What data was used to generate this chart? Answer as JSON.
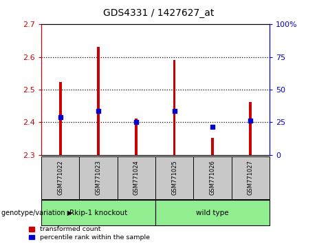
{
  "title": "GDS4331 / 1427627_at",
  "categories": [
    "GSM771022",
    "GSM771023",
    "GSM771024",
    "GSM771025",
    "GSM771026",
    "GSM771027"
  ],
  "red_values": [
    2.523,
    2.632,
    2.412,
    2.59,
    2.352,
    2.462
  ],
  "blue_values": [
    2.415,
    2.435,
    2.4,
    2.435,
    2.387,
    2.405
  ],
  "ylim_left": [
    2.3,
    2.7
  ],
  "yticks_left": [
    2.3,
    2.4,
    2.5,
    2.6,
    2.7
  ],
  "ylim_right": [
    0,
    100
  ],
  "yticks_right": [
    0,
    25,
    50,
    75,
    100
  ],
  "yticklabels_right": [
    "0",
    "25",
    "50",
    "75",
    "100%"
  ],
  "bar_bottom": 2.3,
  "group1_label": "Rkip-1 knockout",
  "group2_label": "wild type",
  "group_bg_color": "#90EE90",
  "sample_bg_color": "#C8C8C8",
  "red_color": "#CC0000",
  "blue_color": "#0000CC",
  "legend_red_label": "transformed count",
  "legend_blue_label": "percentile rank within the sample",
  "genotype_label": "genotype/variation",
  "left_axis_color": "#CC0000",
  "right_axis_color": "#0000CC",
  "grid_lines": [
    2.4,
    2.5,
    2.6
  ],
  "bar_width": 0.07
}
